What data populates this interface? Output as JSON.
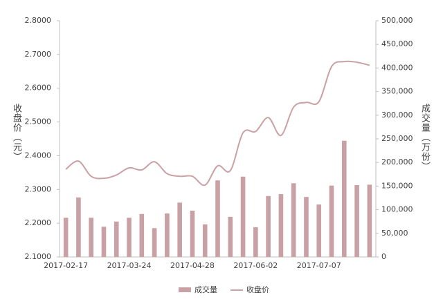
{
  "chart_data": {
    "type": "bar-line",
    "y_label": "收盘价（元）",
    "y2_label": "成交量（万份）",
    "categories": [
      "2017-02-17",
      null,
      null,
      null,
      null,
      "2017-03-24",
      null,
      null,
      null,
      null,
      "2017-04-28",
      null,
      null,
      null,
      null,
      "2017-06-02",
      null,
      null,
      null,
      null,
      "2017-07-07",
      null,
      null,
      null,
      null
    ],
    "series": [
      {
        "name": "成交量",
        "type": "bar",
        "axis": "y2",
        "color": "#c9a0a4",
        "values": [
          83000,
          126000,
          83000,
          64000,
          75000,
          83000,
          91000,
          61000,
          92000,
          115000,
          98000,
          69000,
          162000,
          85000,
          170000,
          63000,
          129000,
          133000,
          156000,
          127000,
          111000,
          151000,
          246000,
          152000,
          153000
        ]
      },
      {
        "name": "收盘价",
        "type": "line",
        "color": "#c9a0a4",
        "values": [
          2.36,
          2.384,
          2.339,
          2.333,
          2.343,
          2.364,
          2.358,
          2.382,
          2.347,
          2.339,
          2.339,
          2.313,
          2.37,
          2.356,
          2.468,
          2.472,
          2.513,
          2.46,
          2.544,
          2.558,
          2.56,
          2.664,
          2.679,
          2.677,
          2.668
        ]
      }
    ],
    "ylim": [
      2.1,
      2.8
    ],
    "yticks": [
      {
        "value": 2.1,
        "label": "2.1000"
      },
      {
        "value": 2.2,
        "label": "2.2000"
      },
      {
        "value": 2.3,
        "label": "2.3000"
      },
      {
        "value": 2.4,
        "label": "2.4000"
      },
      {
        "value": 2.5,
        "label": "2.5000"
      },
      {
        "value": 2.6,
        "label": "2.6000"
      },
      {
        "value": 2.7,
        "label": "2.7000"
      },
      {
        "value": 2.8,
        "label": "2.8000"
      }
    ],
    "y2lim": [
      0,
      500000
    ],
    "y2ticks": [
      0,
      {
        "value": 50000,
        "label": "50,000"
      },
      {
        "value": 100000,
        "label": "100,000"
      },
      {
        "value": 150000,
        "label": "150,000"
      },
      {
        "value": 200000,
        "label": "200,000"
      },
      {
        "value": 250000,
        "label": "250,000"
      },
      {
        "value": 300000,
        "label": "300,000"
      },
      {
        "value": 350000,
        "label": "350,000"
      },
      {
        "value": 400000,
        "label": "400,000"
      },
      {
        "value": 450000,
        "label": "450,000"
      },
      {
        "value": 500000,
        "label": "500,000"
      }
    ],
    "legend": "bottom"
  }
}
